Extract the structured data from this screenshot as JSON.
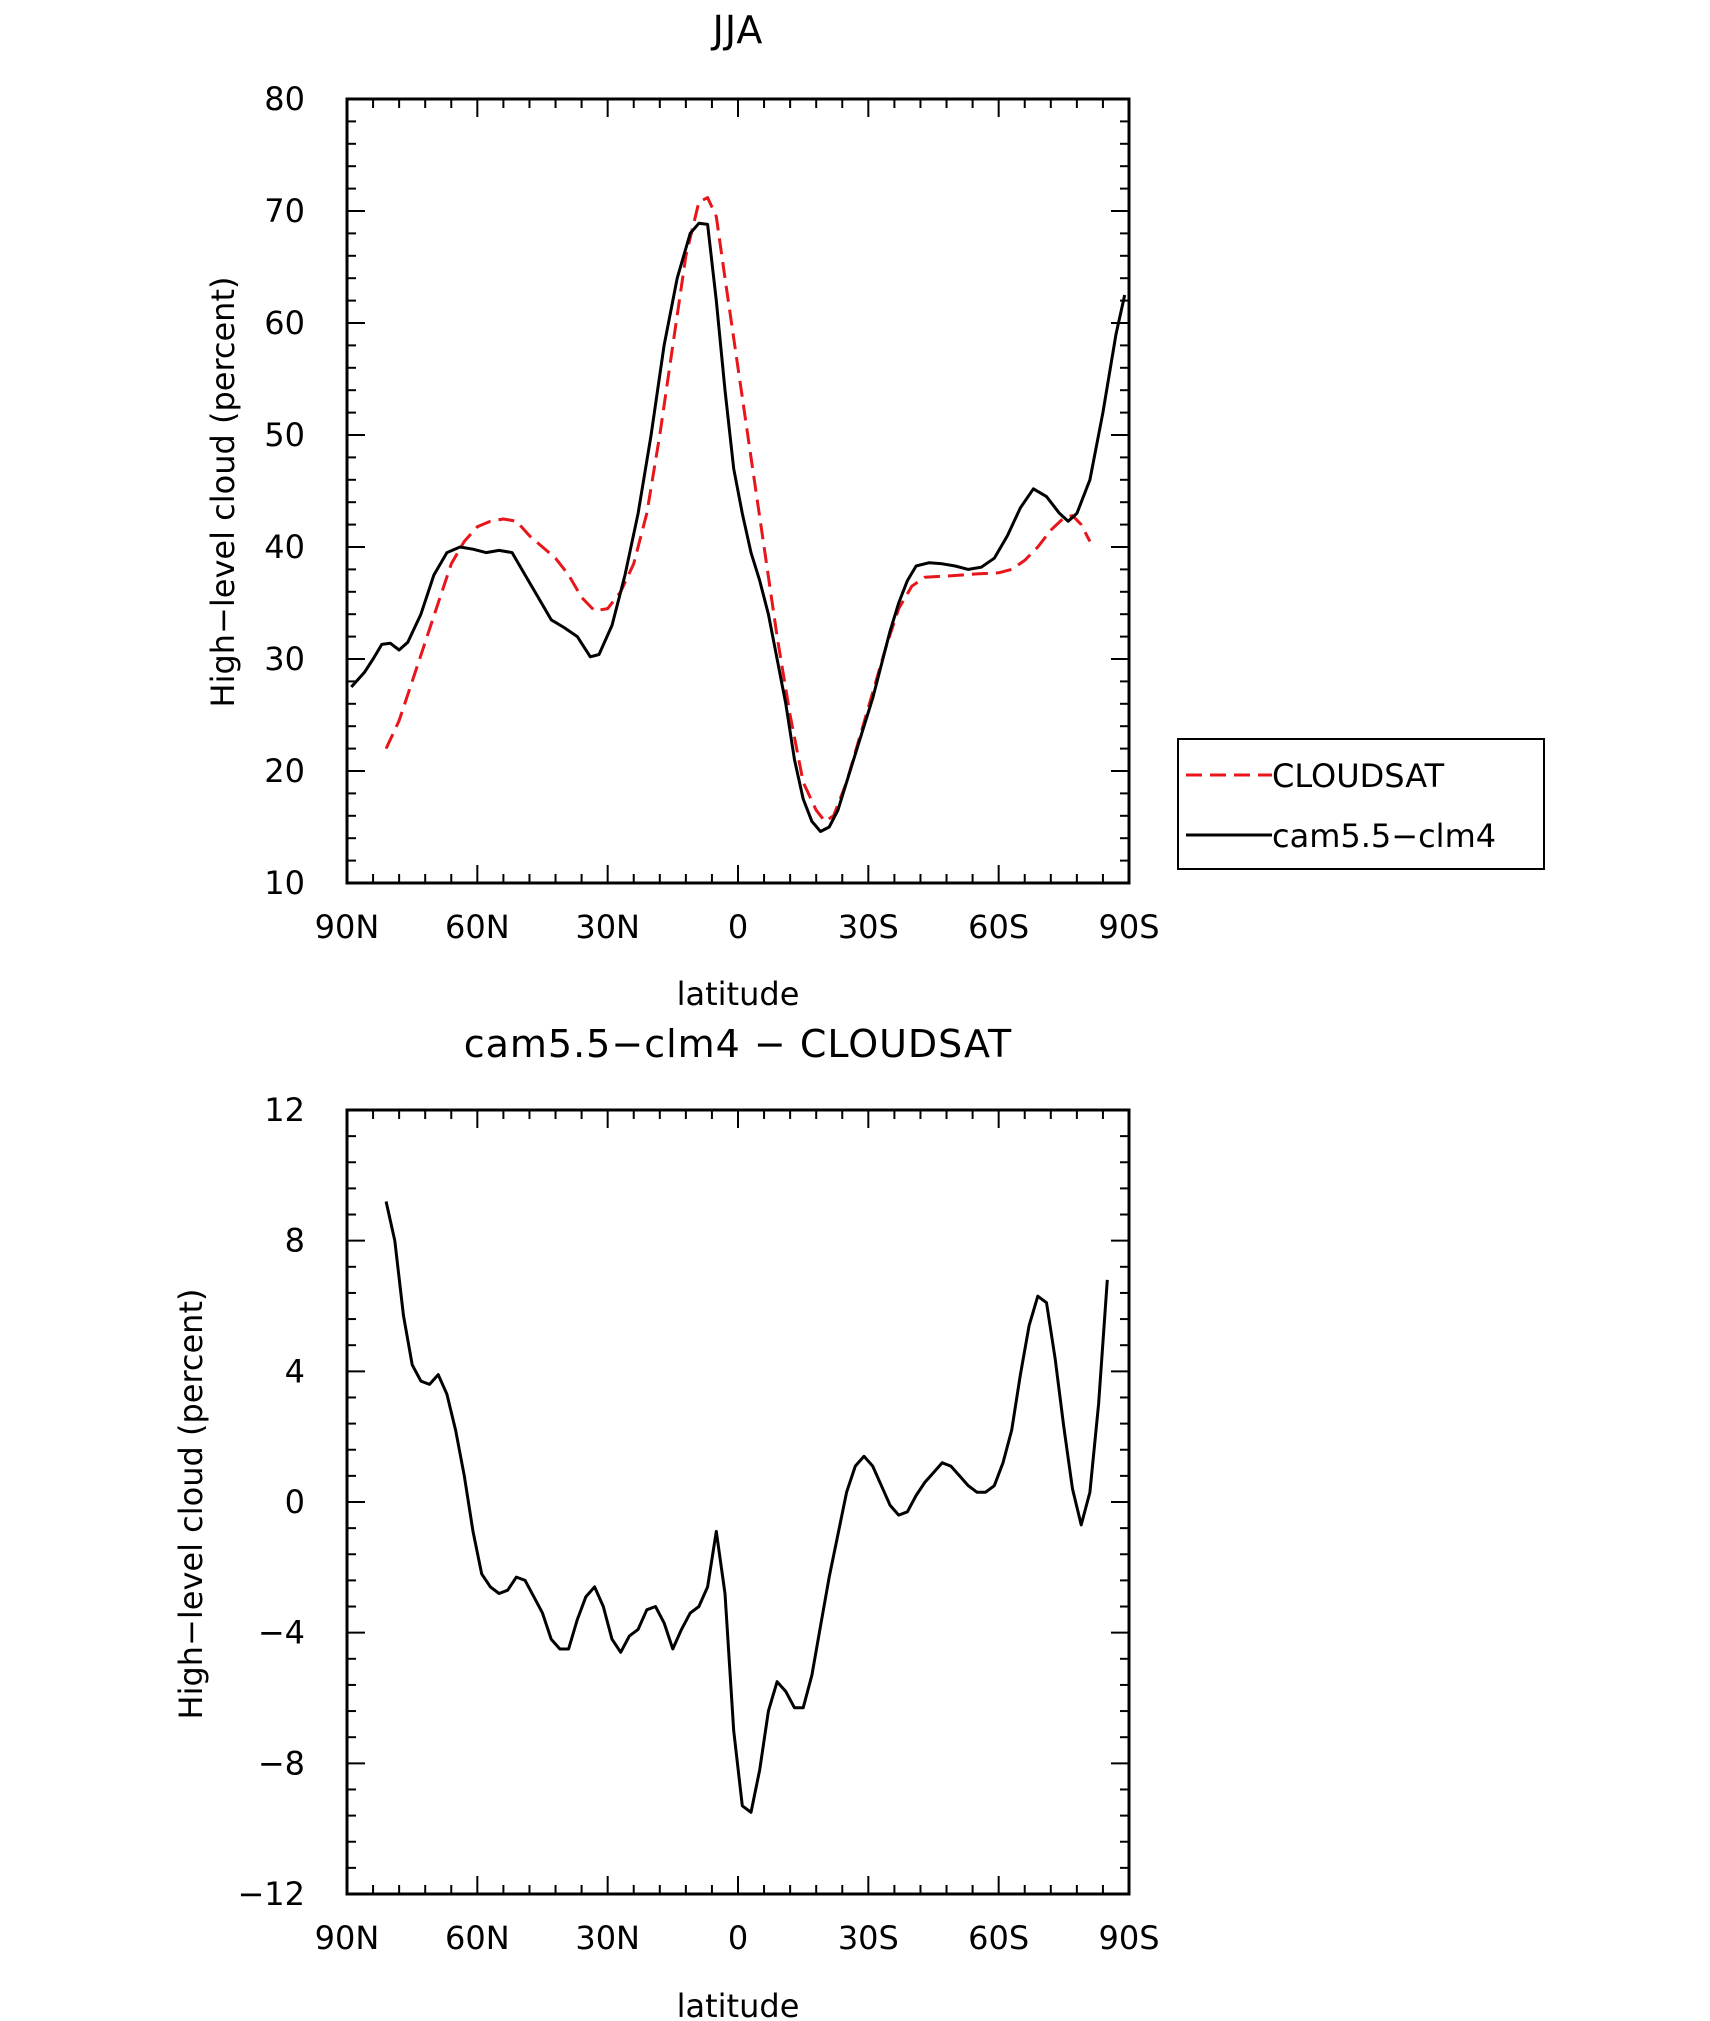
{
  "colors": {
    "cloudsat": "#e8151a",
    "model": "#000000",
    "axis": "#000000"
  },
  "chart_data": [
    {
      "type": "line",
      "title": "JJA",
      "xlabel": "latitude",
      "ylabel": "High−level cloud (percent)",
      "xlim": [
        -90,
        90
      ],
      "ylim": [
        10,
        80
      ],
      "xticks": [
        -90,
        -60,
        -30,
        0,
        30,
        60,
        90
      ],
      "xtick_labels": [
        "90N",
        "60N",
        "30N",
        "0",
        "30S",
        "60S",
        "90S"
      ],
      "yticks": [
        10,
        20,
        30,
        40,
        50,
        60,
        70,
        80
      ],
      "ytick_labels": [
        "10",
        "20",
        "30",
        "40",
        "50",
        "60",
        "70",
        "80"
      ],
      "grid": false,
      "legend_position": "right",
      "series": [
        {
          "name": "CLOUDSAT",
          "style": "dashed",
          "color": "#e8151a",
          "points": [
            [
              -81,
              22
            ],
            [
              -78,
              24.5
            ],
            [
              -75,
              28
            ],
            [
              -72,
              31.5
            ],
            [
              -69,
              35
            ],
            [
              -66,
              38.5
            ],
            [
              -63,
              40.5
            ],
            [
              -60,
              41.8
            ],
            [
              -57,
              42.3
            ],
            [
              -54,
              42.5
            ],
            [
              -51,
              42.3
            ],
            [
              -48,
              41
            ],
            [
              -45,
              40
            ],
            [
              -42,
              39
            ],
            [
              -39,
              37.5
            ],
            [
              -36,
              35.5
            ],
            [
              -33,
              34.3
            ],
            [
              -30,
              34.5
            ],
            [
              -27,
              36
            ],
            [
              -24,
              38.5
            ],
            [
              -21,
              43
            ],
            [
              -18,
              50
            ],
            [
              -15,
              58
            ],
            [
              -12,
              66
            ],
            [
              -9,
              70.8
            ],
            [
              -7,
              71.2
            ],
            [
              -5,
              69.5
            ],
            [
              -3,
              64
            ],
            [
              0,
              56
            ],
            [
              3,
              48
            ],
            [
              6,
              40
            ],
            [
              9,
              32
            ],
            [
              12,
              25
            ],
            [
              15,
              19
            ],
            [
              18,
              16.5
            ],
            [
              20,
              15.5
            ],
            [
              22,
              16
            ],
            [
              25,
              19
            ],
            [
              28,
              23
            ],
            [
              31,
              27
            ],
            [
              34,
              31
            ],
            [
              37,
              34.5
            ],
            [
              40,
              36.5
            ],
            [
              43,
              37.3
            ],
            [
              48,
              37.4
            ],
            [
              55,
              37.6
            ],
            [
              60,
              37.7
            ],
            [
              63,
              38
            ],
            [
              66,
              38.8
            ],
            [
              69,
              40
            ],
            [
              72,
              41.5
            ],
            [
              75,
              42.6
            ],
            [
              77,
              42.8
            ],
            [
              79,
              42
            ],
            [
              81,
              40.5
            ]
          ]
        },
        {
          "name": "cam5.5−clm4",
          "style": "solid",
          "color": "#000000",
          "points": [
            [
              -89,
              27.5
            ],
            [
              -86,
              28.8
            ],
            [
              -84,
              30
            ],
            [
              -82,
              31.3
            ],
            [
              -80,
              31.4
            ],
            [
              -78,
              30.8
            ],
            [
              -76,
              31.5
            ],
            [
              -73,
              34
            ],
            [
              -70,
              37.5
            ],
            [
              -67,
              39.5
            ],
            [
              -64,
              40
            ],
            [
              -61,
              39.8
            ],
            [
              -58,
              39.5
            ],
            [
              -55,
              39.7
            ],
            [
              -52,
              39.5
            ],
            [
              -49,
              37.5
            ],
            [
              -46,
              35.5
            ],
            [
              -43,
              33.5
            ],
            [
              -40,
              32.8
            ],
            [
              -37,
              32
            ],
            [
              -34,
              30.2
            ],
            [
              -32,
              30.4
            ],
            [
              -29,
              33
            ],
            [
              -26,
              37.5
            ],
            [
              -23,
              43
            ],
            [
              -20,
              50
            ],
            [
              -17,
              58
            ],
            [
              -14,
              64
            ],
            [
              -11,
              68
            ],
            [
              -9,
              68.9
            ],
            [
              -7,
              68.8
            ],
            [
              -5,
              62
            ],
            [
              -3,
              54
            ],
            [
              -1,
              47
            ],
            [
              1,
              43
            ],
            [
              3,
              39.5
            ],
            [
              5,
              37
            ],
            [
              7,
              34
            ],
            [
              9,
              30
            ],
            [
              11,
              26
            ],
            [
              13,
              21
            ],
            [
              15,
              17.5
            ],
            [
              17,
              15.5
            ],
            [
              19,
              14.6
            ],
            [
              21,
              15
            ],
            [
              23,
              16.5
            ],
            [
              25,
              19
            ],
            [
              27,
              21.5
            ],
            [
              29,
              24
            ],
            [
              31,
              26.5
            ],
            [
              33,
              29.5
            ],
            [
              35,
              32.5
            ],
            [
              37,
              35
            ],
            [
              39,
              37
            ],
            [
              41,
              38.3
            ],
            [
              44,
              38.6
            ],
            [
              47,
              38.5
            ],
            [
              50,
              38.3
            ],
            [
              53,
              38
            ],
            [
              56,
              38.2
            ],
            [
              59,
              39
            ],
            [
              62,
              41
            ],
            [
              65,
              43.5
            ],
            [
              68,
              45.2
            ],
            [
              71,
              44.5
            ],
            [
              74,
              43
            ],
            [
              76,
              42.3
            ],
            [
              78,
              43
            ],
            [
              81,
              46
            ],
            [
              84,
              52
            ],
            [
              87,
              59
            ],
            [
              89,
              62.5
            ]
          ]
        }
      ]
    },
    {
      "type": "line",
      "title": "cam5.5−clm4 − CLOUDSAT",
      "xlabel": "latitude",
      "ylabel": "High−level cloud (percent)",
      "xlim": [
        -90,
        90
      ],
      "ylim": [
        -12,
        12
      ],
      "xticks": [
        -90,
        -60,
        -30,
        0,
        30,
        60,
        90
      ],
      "xtick_labels": [
        "90N",
        "60N",
        "30N",
        "0",
        "30S",
        "60S",
        "90S"
      ],
      "yticks": [
        -12,
        -8,
        -4,
        0,
        4,
        8,
        12
      ],
      "ytick_labels": [
        "−12",
        "−8",
        "−4",
        "0",
        "4",
        "8",
        "12"
      ],
      "grid": false,
      "series": [
        {
          "style": "solid",
          "color": "#000000",
          "points": [
            [
              -81,
              9.2
            ],
            [
              -79,
              8
            ],
            [
              -77,
              5.7
            ],
            [
              -75,
              4.2
            ],
            [
              -73,
              3.7
            ],
            [
              -71,
              3.6
            ],
            [
              -69,
              3.9
            ],
            [
              -67,
              3.3
            ],
            [
              -65,
              2.2
            ],
            [
              -63,
              0.8
            ],
            [
              -61,
              -0.9
            ],
            [
              -59,
              -2.2
            ],
            [
              -57,
              -2.6
            ],
            [
              -55,
              -2.8
            ],
            [
              -53,
              -2.7
            ],
            [
              -51,
              -2.3
            ],
            [
              -49,
              -2.4
            ],
            [
              -47,
              -2.9
            ],
            [
              -45,
              -3.4
            ],
            [
              -43,
              -4.2
            ],
            [
              -41,
              -4.5
            ],
            [
              -39,
              -4.5
            ],
            [
              -37,
              -3.6
            ],
            [
              -35,
              -2.9
            ],
            [
              -33,
              -2.6
            ],
            [
              -31,
              -3.2
            ],
            [
              -29,
              -4.2
            ],
            [
              -27,
              -4.6
            ],
            [
              -25,
              -4.1
            ],
            [
              -23,
              -3.9
            ],
            [
              -21,
              -3.3
            ],
            [
              -19,
              -3.2
            ],
            [
              -17,
              -3.7
            ],
            [
              -15,
              -4.5
            ],
            [
              -13,
              -3.9
            ],
            [
              -11,
              -3.4
            ],
            [
              -9,
              -3.2
            ],
            [
              -7,
              -2.6
            ],
            [
              -5,
              -0.9
            ],
            [
              -3,
              -2.8
            ],
            [
              -1,
              -7
            ],
            [
              1,
              -9.3
            ],
            [
              3,
              -9.5
            ],
            [
              5,
              -8.2
            ],
            [
              7,
              -6.4
            ],
            [
              9,
              -5.5
            ],
            [
              11,
              -5.8
            ],
            [
              13,
              -6.3
            ],
            [
              15,
              -6.3
            ],
            [
              17,
              -5.3
            ],
            [
              19,
              -3.8
            ],
            [
              21,
              -2.3
            ],
            [
              23,
              -1
            ],
            [
              25,
              0.3
            ],
            [
              27,
              1.1
            ],
            [
              29,
              1.4
            ],
            [
              31,
              1.1
            ],
            [
              33,
              0.5
            ],
            [
              35,
              -0.1
            ],
            [
              37,
              -0.4
            ],
            [
              39,
              -0.3
            ],
            [
              41,
              0.2
            ],
            [
              43,
              0.6
            ],
            [
              45,
              0.9
            ],
            [
              47,
              1.2
            ],
            [
              49,
              1.1
            ],
            [
              51,
              0.8
            ],
            [
              53,
              0.5
            ],
            [
              55,
              0.3
            ],
            [
              57,
              0.3
            ],
            [
              59,
              0.5
            ],
            [
              61,
              1.2
            ],
            [
              63,
              2.2
            ],
            [
              65,
              3.9
            ],
            [
              67,
              5.4
            ],
            [
              69,
              6.3
            ],
            [
              71,
              6.1
            ],
            [
              73,
              4.4
            ],
            [
              75,
              2.3
            ],
            [
              77,
              0.4
            ],
            [
              79,
              -0.7
            ],
            [
              81,
              0.3
            ],
            [
              83,
              3
            ],
            [
              85,
              6.8
            ]
          ]
        }
      ]
    }
  ]
}
